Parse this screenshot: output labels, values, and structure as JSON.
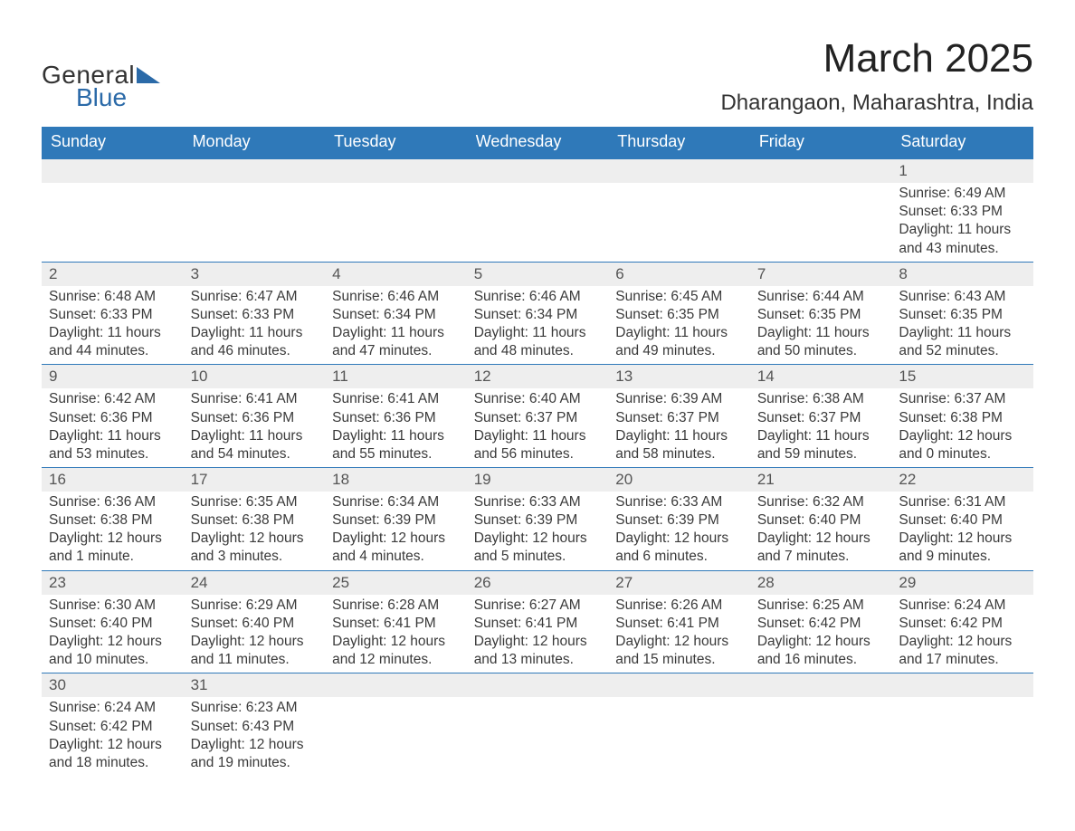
{
  "logo": {
    "line1": "General",
    "line2": "Blue"
  },
  "title": "March 2025",
  "location": "Dharangaon, Maharashtra, India",
  "colors": {
    "header_bg": "#2f79b9",
    "header_text": "#ffffff",
    "daynum_bg": "#eeeeee",
    "border": "#2f79b9",
    "text": "#3a3a3a",
    "logo_blue": "#2b6aa8"
  },
  "typography": {
    "title_fontsize": 44,
    "location_fontsize": 24,
    "header_fontsize": 18,
    "cell_fontsize": 15.5,
    "logo_fontsize": 28
  },
  "day_headers": [
    "Sunday",
    "Monday",
    "Tuesday",
    "Wednesday",
    "Thursday",
    "Friday",
    "Saturday"
  ],
  "weeks": [
    [
      null,
      null,
      null,
      null,
      null,
      null,
      {
        "n": "1",
        "sr": "Sunrise: 6:49 AM",
        "ss": "Sunset: 6:33 PM",
        "d1": "Daylight: 11 hours",
        "d2": "and 43 minutes."
      }
    ],
    [
      {
        "n": "2",
        "sr": "Sunrise: 6:48 AM",
        "ss": "Sunset: 6:33 PM",
        "d1": "Daylight: 11 hours",
        "d2": "and 44 minutes."
      },
      {
        "n": "3",
        "sr": "Sunrise: 6:47 AM",
        "ss": "Sunset: 6:33 PM",
        "d1": "Daylight: 11 hours",
        "d2": "and 46 minutes."
      },
      {
        "n": "4",
        "sr": "Sunrise: 6:46 AM",
        "ss": "Sunset: 6:34 PM",
        "d1": "Daylight: 11 hours",
        "d2": "and 47 minutes."
      },
      {
        "n": "5",
        "sr": "Sunrise: 6:46 AM",
        "ss": "Sunset: 6:34 PM",
        "d1": "Daylight: 11 hours",
        "d2": "and 48 minutes."
      },
      {
        "n": "6",
        "sr": "Sunrise: 6:45 AM",
        "ss": "Sunset: 6:35 PM",
        "d1": "Daylight: 11 hours",
        "d2": "and 49 minutes."
      },
      {
        "n": "7",
        "sr": "Sunrise: 6:44 AM",
        "ss": "Sunset: 6:35 PM",
        "d1": "Daylight: 11 hours",
        "d2": "and 50 minutes."
      },
      {
        "n": "8",
        "sr": "Sunrise: 6:43 AM",
        "ss": "Sunset: 6:35 PM",
        "d1": "Daylight: 11 hours",
        "d2": "and 52 minutes."
      }
    ],
    [
      {
        "n": "9",
        "sr": "Sunrise: 6:42 AM",
        "ss": "Sunset: 6:36 PM",
        "d1": "Daylight: 11 hours",
        "d2": "and 53 minutes."
      },
      {
        "n": "10",
        "sr": "Sunrise: 6:41 AM",
        "ss": "Sunset: 6:36 PM",
        "d1": "Daylight: 11 hours",
        "d2": "and 54 minutes."
      },
      {
        "n": "11",
        "sr": "Sunrise: 6:41 AM",
        "ss": "Sunset: 6:36 PM",
        "d1": "Daylight: 11 hours",
        "d2": "and 55 minutes."
      },
      {
        "n": "12",
        "sr": "Sunrise: 6:40 AM",
        "ss": "Sunset: 6:37 PM",
        "d1": "Daylight: 11 hours",
        "d2": "and 56 minutes."
      },
      {
        "n": "13",
        "sr": "Sunrise: 6:39 AM",
        "ss": "Sunset: 6:37 PM",
        "d1": "Daylight: 11 hours",
        "d2": "and 58 minutes."
      },
      {
        "n": "14",
        "sr": "Sunrise: 6:38 AM",
        "ss": "Sunset: 6:37 PM",
        "d1": "Daylight: 11 hours",
        "d2": "and 59 minutes."
      },
      {
        "n": "15",
        "sr": "Sunrise: 6:37 AM",
        "ss": "Sunset: 6:38 PM",
        "d1": "Daylight: 12 hours",
        "d2": "and 0 minutes."
      }
    ],
    [
      {
        "n": "16",
        "sr": "Sunrise: 6:36 AM",
        "ss": "Sunset: 6:38 PM",
        "d1": "Daylight: 12 hours",
        "d2": "and 1 minute."
      },
      {
        "n": "17",
        "sr": "Sunrise: 6:35 AM",
        "ss": "Sunset: 6:38 PM",
        "d1": "Daylight: 12 hours",
        "d2": "and 3 minutes."
      },
      {
        "n": "18",
        "sr": "Sunrise: 6:34 AM",
        "ss": "Sunset: 6:39 PM",
        "d1": "Daylight: 12 hours",
        "d2": "and 4 minutes."
      },
      {
        "n": "19",
        "sr": "Sunrise: 6:33 AM",
        "ss": "Sunset: 6:39 PM",
        "d1": "Daylight: 12 hours",
        "d2": "and 5 minutes."
      },
      {
        "n": "20",
        "sr": "Sunrise: 6:33 AM",
        "ss": "Sunset: 6:39 PM",
        "d1": "Daylight: 12 hours",
        "d2": "and 6 minutes."
      },
      {
        "n": "21",
        "sr": "Sunrise: 6:32 AM",
        "ss": "Sunset: 6:40 PM",
        "d1": "Daylight: 12 hours",
        "d2": "and 7 minutes."
      },
      {
        "n": "22",
        "sr": "Sunrise: 6:31 AM",
        "ss": "Sunset: 6:40 PM",
        "d1": "Daylight: 12 hours",
        "d2": "and 9 minutes."
      }
    ],
    [
      {
        "n": "23",
        "sr": "Sunrise: 6:30 AM",
        "ss": "Sunset: 6:40 PM",
        "d1": "Daylight: 12 hours",
        "d2": "and 10 minutes."
      },
      {
        "n": "24",
        "sr": "Sunrise: 6:29 AM",
        "ss": "Sunset: 6:40 PM",
        "d1": "Daylight: 12 hours",
        "d2": "and 11 minutes."
      },
      {
        "n": "25",
        "sr": "Sunrise: 6:28 AM",
        "ss": "Sunset: 6:41 PM",
        "d1": "Daylight: 12 hours",
        "d2": "and 12 minutes."
      },
      {
        "n": "26",
        "sr": "Sunrise: 6:27 AM",
        "ss": "Sunset: 6:41 PM",
        "d1": "Daylight: 12 hours",
        "d2": "and 13 minutes."
      },
      {
        "n": "27",
        "sr": "Sunrise: 6:26 AM",
        "ss": "Sunset: 6:41 PM",
        "d1": "Daylight: 12 hours",
        "d2": "and 15 minutes."
      },
      {
        "n": "28",
        "sr": "Sunrise: 6:25 AM",
        "ss": "Sunset: 6:42 PM",
        "d1": "Daylight: 12 hours",
        "d2": "and 16 minutes."
      },
      {
        "n": "29",
        "sr": "Sunrise: 6:24 AM",
        "ss": "Sunset: 6:42 PM",
        "d1": "Daylight: 12 hours",
        "d2": "and 17 minutes."
      }
    ],
    [
      {
        "n": "30",
        "sr": "Sunrise: 6:24 AM",
        "ss": "Sunset: 6:42 PM",
        "d1": "Daylight: 12 hours",
        "d2": "and 18 minutes."
      },
      {
        "n": "31",
        "sr": "Sunrise: 6:23 AM",
        "ss": "Sunset: 6:43 PM",
        "d1": "Daylight: 12 hours",
        "d2": "and 19 minutes."
      },
      null,
      null,
      null,
      null,
      null
    ]
  ]
}
